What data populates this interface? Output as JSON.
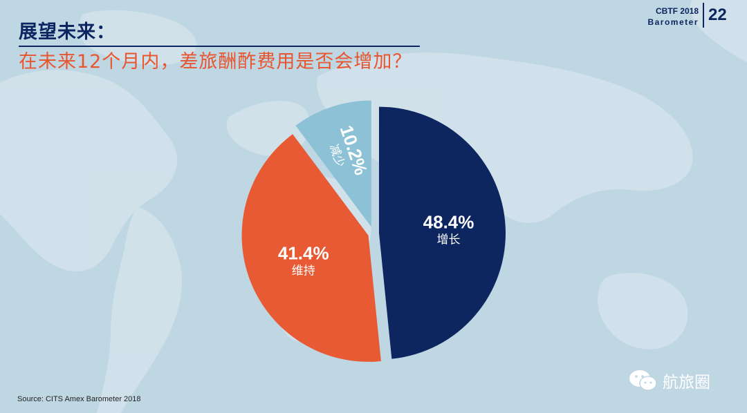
{
  "header": {
    "title": "展望未来：",
    "subtitle": "在未来12个月内，差旅酬酢费用是否会增加？",
    "brand_line1": "CBTF 2018",
    "brand_line2": "Barometer",
    "page_number": "22"
  },
  "footer": {
    "source": "Source: CITS Amex  Barometer 2018",
    "watermark": "航旅圈",
    "watermark_icon": "wechat-icon"
  },
  "colors": {
    "background": "#bfd6e3",
    "title": "#0b2560",
    "subtitle": "#e8552e"
  },
  "chart_data": {
    "type": "pie",
    "title": "",
    "slices": [
      {
        "label": "增长",
        "value": 48.4,
        "value_label": "48.4%",
        "color": "#0d2660"
      },
      {
        "label": "维持",
        "value": 41.4,
        "value_label": "41.4%",
        "color": "#e85a33"
      },
      {
        "label": "减少",
        "value": 10.2,
        "value_label": "10.2%",
        "color": "#8dc1d5"
      }
    ],
    "exploded": true,
    "legend": "none"
  }
}
